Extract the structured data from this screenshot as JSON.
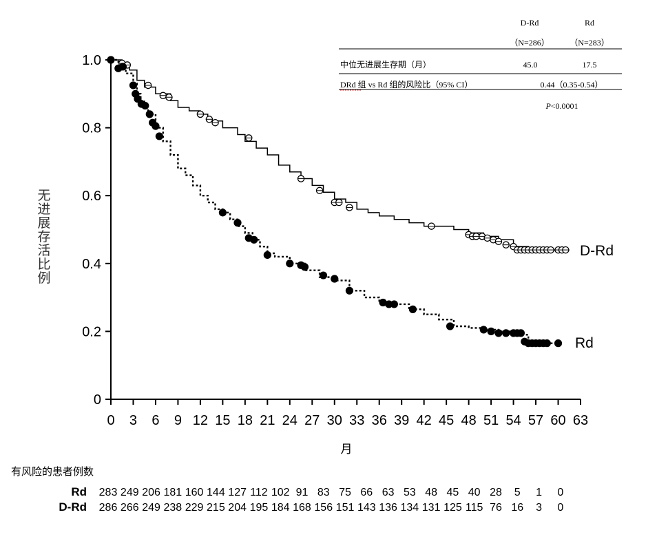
{
  "chart_data": {
    "type": "line",
    "subtype": "kaplan-meier",
    "ylabel": "无进展存活比例",
    "xlabel": "月",
    "ylim": [
      0,
      1.0
    ],
    "xlim": [
      0,
      63
    ],
    "y_ticks": [
      "0",
      "0.2",
      "0.4",
      "0.6",
      "0.8",
      "1.0"
    ],
    "x_ticks": [
      "0",
      "3",
      "6",
      "9",
      "12",
      "15",
      "18",
      "21",
      "24",
      "27",
      "30",
      "33",
      "36",
      "39",
      "42",
      "45",
      "48",
      "51",
      "54",
      "57",
      "60",
      "63"
    ],
    "series": [
      {
        "name": "D-Rd",
        "line_style": "solid",
        "censor_marker": "open-circle",
        "x": [
          0,
          1.5,
          2.5,
          3.5,
          4.5,
          6,
          8,
          9,
          10.5,
          12,
          13,
          15,
          17,
          18,
          19.5,
          21,
          22.5,
          24,
          25.5,
          27,
          28.5,
          30,
          31.5,
          33,
          34.5,
          36,
          38,
          40,
          42,
          44,
          46,
          48,
          50,
          52,
          54,
          56,
          58,
          60,
          61.5
        ],
        "y": [
          1.0,
          0.98,
          0.97,
          0.94,
          0.92,
          0.9,
          0.88,
          0.86,
          0.85,
          0.84,
          0.82,
          0.8,
          0.78,
          0.76,
          0.74,
          0.72,
          0.69,
          0.67,
          0.65,
          0.63,
          0.61,
          0.59,
          0.58,
          0.56,
          0.55,
          0.54,
          0.53,
          0.52,
          0.51,
          0.51,
          0.5,
          0.49,
          0.48,
          0.47,
          0.45,
          0.44,
          0.44,
          0.44,
          0.44
        ],
        "censored": [
          [
            1.5,
            0.99
          ],
          [
            2.2,
            0.985
          ],
          [
            5.0,
            0.925
          ],
          [
            7.0,
            0.895
          ],
          [
            7.8,
            0.89
          ],
          [
            12.0,
            0.84
          ],
          [
            13.2,
            0.825
          ],
          [
            14.0,
            0.815
          ],
          [
            18.5,
            0.77
          ],
          [
            25.5,
            0.65
          ],
          [
            28.0,
            0.615
          ],
          [
            30.0,
            0.58
          ],
          [
            30.6,
            0.58
          ],
          [
            32.0,
            0.565
          ],
          [
            43.0,
            0.51
          ],
          [
            48.0,
            0.485
          ],
          [
            48.5,
            0.48
          ],
          [
            49.0,
            0.48
          ],
          [
            49.8,
            0.48
          ],
          [
            50.5,
            0.475
          ],
          [
            51.3,
            0.47
          ],
          [
            52.0,
            0.465
          ],
          [
            53.0,
            0.455
          ],
          [
            54.0,
            0.45
          ],
          [
            54.5,
            0.44
          ],
          [
            55.0,
            0.44
          ],
          [
            55.5,
            0.44
          ],
          [
            56.0,
            0.44
          ],
          [
            56.5,
            0.44
          ],
          [
            57.0,
            0.44
          ],
          [
            57.5,
            0.44
          ],
          [
            58.0,
            0.44
          ],
          [
            58.5,
            0.44
          ],
          [
            59.0,
            0.44
          ],
          [
            60.0,
            0.44
          ],
          [
            60.5,
            0.44
          ],
          [
            61.0,
            0.44
          ]
        ]
      },
      {
        "name": "Rd",
        "line_style": "dashed",
        "censor_marker": "filled-circle",
        "x": [
          0,
          1.0,
          2.0,
          3.0,
          3.5,
          4.0,
          4.5,
          5.0,
          6.0,
          7.0,
          8.0,
          9.0,
          10.0,
          11.0,
          12.0,
          13.0,
          14.0,
          15.0,
          16.0,
          17.0,
          18.0,
          19.0,
          20.0,
          21.0,
          22.0,
          24.0,
          26.0,
          28.0,
          30.0,
          32.0,
          34.0,
          36.0,
          38.0,
          40.0,
          42.0,
          44.0,
          46.0,
          48.0,
          50.0,
          52.0,
          54.0,
          55.0,
          56.0,
          58.0,
          60.0
        ],
        "y": [
          1.0,
          0.98,
          0.96,
          0.93,
          0.9,
          0.88,
          0.86,
          0.84,
          0.8,
          0.76,
          0.72,
          0.68,
          0.66,
          0.63,
          0.6,
          0.58,
          0.56,
          0.55,
          0.53,
          0.51,
          0.49,
          0.47,
          0.45,
          0.43,
          0.42,
          0.4,
          0.38,
          0.36,
          0.35,
          0.32,
          0.3,
          0.285,
          0.28,
          0.265,
          0.25,
          0.235,
          0.215,
          0.21,
          0.205,
          0.2,
          0.195,
          0.19,
          0.17,
          0.165,
          0.165
        ],
        "censored": [
          [
            0.0,
            1.0
          ],
          [
            1.0,
            0.975
          ],
          [
            1.6,
            0.98
          ],
          [
            3.0,
            0.925
          ],
          [
            3.3,
            0.9
          ],
          [
            3.6,
            0.885
          ],
          [
            4.1,
            0.87
          ],
          [
            4.6,
            0.865
          ],
          [
            5.2,
            0.84
          ],
          [
            5.6,
            0.815
          ],
          [
            6.0,
            0.805
          ],
          [
            6.5,
            0.775
          ],
          [
            15.0,
            0.55
          ],
          [
            17.0,
            0.52
          ],
          [
            18.5,
            0.475
          ],
          [
            19.2,
            0.47
          ],
          [
            21.0,
            0.425
          ],
          [
            24.0,
            0.4
          ],
          [
            25.5,
            0.395
          ],
          [
            26.0,
            0.39
          ],
          [
            28.5,
            0.365
          ],
          [
            30.0,
            0.355
          ],
          [
            32.0,
            0.32
          ],
          [
            36.5,
            0.285
          ],
          [
            37.3,
            0.28
          ],
          [
            38.0,
            0.28
          ],
          [
            40.5,
            0.265
          ],
          [
            45.5,
            0.215
          ],
          [
            50.0,
            0.205
          ],
          [
            51.0,
            0.2
          ],
          [
            52.0,
            0.195
          ],
          [
            53.0,
            0.195
          ],
          [
            54.0,
            0.195
          ],
          [
            54.5,
            0.195
          ],
          [
            55.0,
            0.195
          ],
          [
            55.5,
            0.17
          ],
          [
            56.0,
            0.165
          ],
          [
            56.5,
            0.165
          ],
          [
            57.0,
            0.165
          ],
          [
            57.5,
            0.165
          ],
          [
            58.0,
            0.165
          ],
          [
            58.5,
            0.165
          ],
          [
            60.0,
            0.165
          ]
        ]
      }
    ],
    "line_labels": [
      "D-Rd",
      "Rd"
    ],
    "summary_table": {
      "col_headers": [
        "D-Rd",
        "Rd"
      ],
      "col_ns": [
        "（N=286）",
        "（N=283）"
      ],
      "row1_label": "中位无进展生存期（月）",
      "row1_values": [
        "45.0",
        "17.5"
      ],
      "row2_label": "DRd 组 vs Rd 组的风险比（95% CI）",
      "row2_value": "0.44（0.35-0.54）",
      "pvalue_p": "P",
      "pvalue_rest": "<0.0001"
    },
    "at_risk": {
      "title": "有风险的患者例数",
      "rows": [
        {
          "name": "Rd",
          "values": [
            "283",
            "249",
            "206",
            "181",
            "160",
            "144",
            "127",
            "112",
            "102",
            "91",
            "83",
            "75",
            "66",
            "63",
            "53",
            "48",
            "45",
            "40",
            "28",
            "5",
            "1",
            "0"
          ]
        },
        {
          "name": "D-Rd",
          "values": [
            "286",
            "266",
            "249",
            "238",
            "229",
            "215",
            "204",
            "195",
            "184",
            "168",
            "156",
            "151",
            "143",
            "136",
            "134",
            "131",
            "125",
            "115",
            "76",
            "16",
            "3",
            "0"
          ]
        }
      ]
    },
    "grid": false
  }
}
